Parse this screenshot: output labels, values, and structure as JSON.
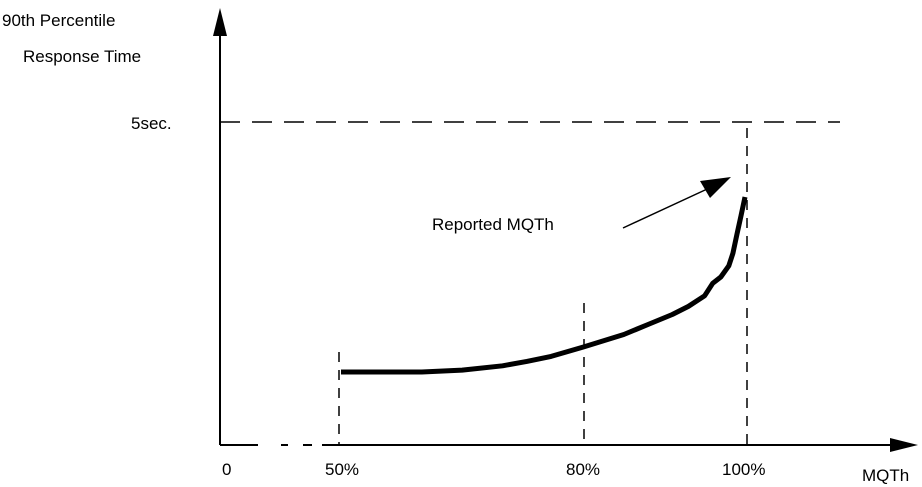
{
  "chart_data": {
    "type": "line",
    "ylabel_line1": "90th Percentile",
    "ylabel_line2": "Response Time",
    "xlabel": "MQTh",
    "y_threshold_label": "5sec.",
    "annotation": "Reported MQTh",
    "x_tick_labels": {
      "origin": "0",
      "p50": "50%",
      "p80": "80%",
      "p100": "100%"
    },
    "x_ticks": [
      0,
      50,
      80,
      100
    ],
    "xlim": [
      0,
      120
    ],
    "ylim": [
      0,
      6
    ],
    "threshold": 5,
    "series": [
      {
        "x": [
          50,
          55,
          60,
          65,
          70,
          73,
          76,
          80,
          85,
          88,
          91,
          93,
          95,
          96,
          97,
          98,
          98.5,
          99,
          99.5,
          100
        ],
        "y": [
          1.0,
          1.0,
          1.0,
          1.03,
          1.1,
          1.17,
          1.25,
          1.4,
          1.6,
          1.76,
          1.92,
          2.05,
          2.22,
          2.42,
          2.52,
          2.7,
          2.9,
          3.2,
          3.5,
          3.8
        ]
      }
    ],
    "annotation_arrow_to": [
      100,
      3.8
    ],
    "grid": false,
    "colors": {
      "line": "#000000",
      "axis": "#000000"
    }
  }
}
